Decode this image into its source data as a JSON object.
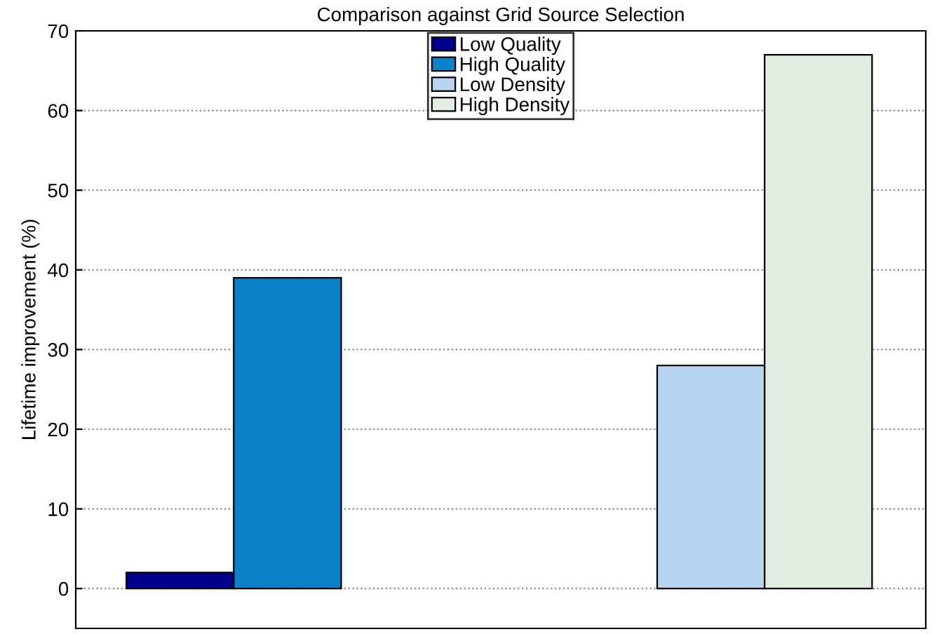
{
  "chart_data": {
    "type": "bar",
    "title": "Comparison against Grid Source Selection",
    "ylabel": "Lifetime improvement (%)",
    "categories": [
      null,
      null
    ],
    "series": [
      {
        "name": "Low Quality",
        "color": "#00008f",
        "values": [
          2,
          null
        ]
      },
      {
        "name": "High Quality",
        "color": "#0a80c8",
        "values": [
          39,
          null
        ]
      },
      {
        "name": "Low Density",
        "color": "#b8d4f0",
        "values": [
          null,
          28
        ]
      },
      {
        "name": "High Density",
        "color": "#e2ede2",
        "values": [
          null,
          67
        ]
      }
    ],
    "ylim": [
      -5,
      70
    ],
    "yticks": [
      0,
      10,
      20,
      30,
      40,
      50,
      60,
      70
    ],
    "grid": "y",
    "legend": "top",
    "tick_labels": "y"
  }
}
